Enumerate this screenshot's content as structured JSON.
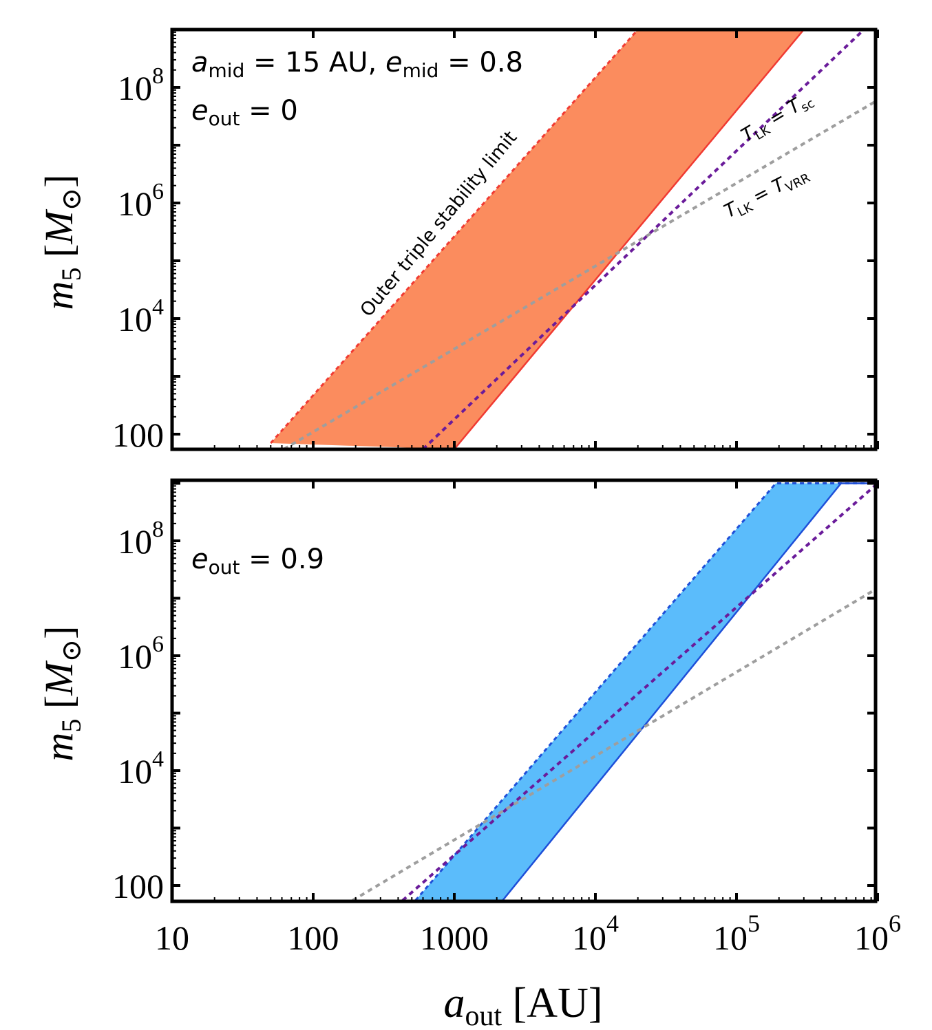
{
  "chart_data": [
    {
      "type": "area",
      "panel": "top",
      "xscale": "log",
      "yscale": "log",
      "xlim": [
        10,
        1000000
      ],
      "ylim": [
        55,
        1000000000
      ],
      "xlabel": "",
      "ylabel": {
        "symbol": "m",
        "sub": "5",
        "unit": "M",
        "unit_sub": "⊙"
      },
      "y_ticks": [
        {
          "value": 100,
          "base": "100",
          "exp": ""
        },
        {
          "value": 10000,
          "base": "10",
          "exp": "4"
        },
        {
          "value": 1000000,
          "base": "10",
          "exp": "6"
        },
        {
          "value": 100000000,
          "base": "10",
          "exp": "8"
        }
      ],
      "annotations": {
        "line1": {
          "a": "a",
          "a_sub": "mid",
          "a_val": " = 15 AU, ",
          "e": "e",
          "e_sub": "mid",
          "e_val": " = 0.8"
        },
        "line2": {
          "e": "e",
          "e_sub": "out",
          "e_val": " = 0"
        }
      },
      "band": {
        "color": "#fb8c5e",
        "edge_color": "#f03a32",
        "upper_edge": {
          "label": "Outer triple stability limit",
          "label_color": "#fb8c00",
          "x": [
            50,
            20000,
            1000000
          ],
          "y": [
            70,
            1000000000,
            1000000000
          ]
        },
        "lower_edge": {
          "x": [
            1000,
            300000,
            1000000
          ],
          "y": [
            55,
            1000000000,
            1000000000
          ]
        }
      },
      "series": [
        {
          "name": "T_LK = T_sc",
          "color": "#6a1b9a",
          "style": "dotted",
          "x": [
            600,
            800000
          ],
          "y": [
            55,
            1000000000
          ]
        },
        {
          "name": "T_LK = T_VRR",
          "color": "#9e9e9e",
          "style": "dotted",
          "x": [
            62,
            1000000
          ],
          "y": [
            55,
            60000000
          ]
        }
      ],
      "line_labels": [
        {
          "T": "T",
          "s1": "LK",
          "eq": " = ",
          "T2": "T",
          "s2": "sc",
          "color": "#7b1fa2"
        },
        {
          "T": "T",
          "s1": "LK",
          "eq": " = ",
          "T2": "T",
          "s2": "VRR",
          "color": "#9e9e9e"
        }
      ]
    },
    {
      "type": "area",
      "panel": "bottom",
      "xscale": "log",
      "yscale": "log",
      "xlim": [
        10,
        1000000
      ],
      "ylim": [
        55,
        1000000000
      ],
      "xlabel": {
        "symbol": "a",
        "sub": "out",
        "unit": "[AU]"
      },
      "ylabel": {
        "symbol": "m",
        "sub": "5",
        "unit": "M",
        "unit_sub": "⊙"
      },
      "x_ticks": [
        {
          "value": 10,
          "base": "10",
          "exp": ""
        },
        {
          "value": 100,
          "base": "100",
          "exp": ""
        },
        {
          "value": 1000,
          "base": "1000",
          "exp": ""
        },
        {
          "value": 10000,
          "base": "10",
          "exp": "4"
        },
        {
          "value": 100000,
          "base": "10",
          "exp": "5"
        },
        {
          "value": 1000000,
          "base": "10",
          "exp": "6"
        }
      ],
      "y_ticks": [
        {
          "value": 100,
          "base": "100",
          "exp": ""
        },
        {
          "value": 10000,
          "base": "10",
          "exp": "4"
        },
        {
          "value": 1000000,
          "base": "10",
          "exp": "6"
        },
        {
          "value": 100000000,
          "base": "10",
          "exp": "8"
        }
      ],
      "annotations": {
        "line1": {
          "e": "e",
          "e_sub": "out",
          "e_val": " = 0.9"
        }
      },
      "band": {
        "color": "#5bbcfb",
        "edge_color": "#1e4fd8",
        "upper_edge": {
          "x": [
            530,
            190000,
            1000000
          ],
          "y": [
            55,
            1000000000,
            1000000000
          ]
        },
        "lower_edge": {
          "x": [
            2200,
            550000,
            1000000
          ],
          "y": [
            55,
            1000000000,
            1000000000
          ]
        }
      },
      "series": [
        {
          "name": "T_LK = T_sc",
          "color": "#6a1b9a",
          "style": "dotted",
          "x": [
            430,
            1000000
          ],
          "y": [
            55,
            1000000000
          ]
        },
        {
          "name": "T_LK = T_VRR",
          "color": "#9e9e9e",
          "style": "dotted",
          "x": [
            190,
            1000000
          ],
          "y": [
            55,
            15000000
          ]
        }
      ]
    }
  ]
}
